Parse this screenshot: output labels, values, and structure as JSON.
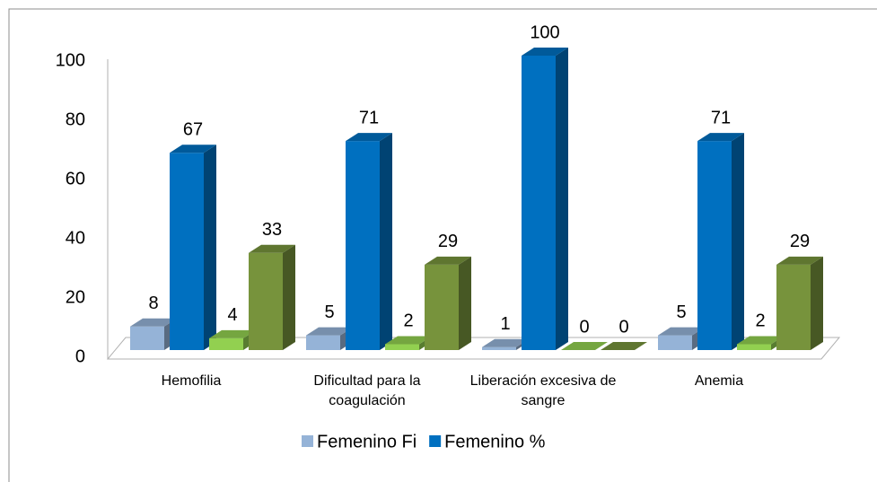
{
  "chart_data": {
    "type": "bar3d",
    "categories": [
      "Hemofilia",
      "Dificultad para la coagulación",
      "Liberación excesiva de sangre",
      "Anemia"
    ],
    "series": [
      {
        "name": "Femenino Fi",
        "color": "#95b3d7",
        "values": [
          8,
          5,
          1,
          5
        ]
      },
      {
        "name": "Femenino %",
        "color": "#0070c0",
        "values": [
          67,
          71,
          100,
          71
        ]
      },
      {
        "color": "#92d050",
        "values": [
          4,
          2,
          0,
          2
        ]
      },
      {
        "color": "#77933c",
        "values": [
          33,
          29,
          0,
          29
        ]
      }
    ],
    "ylim": [
      0,
      100
    ],
    "yticks": [
      0,
      20,
      40,
      60,
      80,
      100
    ],
    "grid": false
  }
}
